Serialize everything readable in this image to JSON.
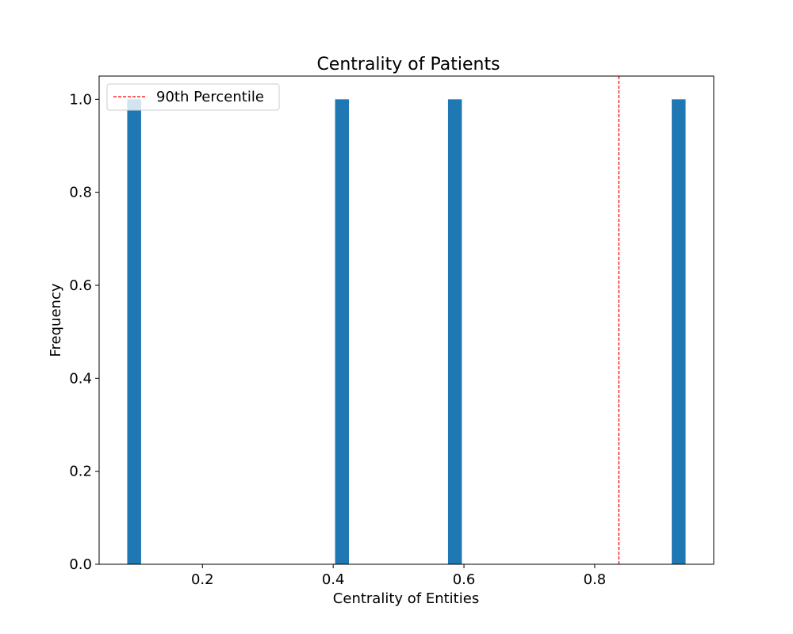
{
  "chart_data": {
    "type": "bar",
    "title": "Centrality of Patients",
    "xlabel": "Centrality of Entities",
    "ylabel": "Frequency",
    "xlim": [
      0.042,
      0.982
    ],
    "ylim": [
      0,
      1.05
    ],
    "x_ticks": [
      0.2,
      0.4,
      0.6,
      0.8
    ],
    "x_tick_labels": [
      "0.2",
      "0.4",
      "0.6",
      "0.8"
    ],
    "y_ticks": [
      0.0,
      0.2,
      0.4,
      0.6,
      0.8,
      1.0
    ],
    "y_tick_labels": [
      "0.0",
      "0.2",
      "0.4",
      "0.6",
      "0.8",
      "1.0"
    ],
    "bar_width": 0.0212,
    "bars": [
      {
        "x_start": 0.085,
        "x_end": 0.1062,
        "value": 1
      },
      {
        "x_start": 0.4029,
        "x_end": 0.4241,
        "value": 1
      },
      {
        "x_start": 0.5756,
        "x_end": 0.5968,
        "value": 1
      },
      {
        "x_start": 0.9178,
        "x_end": 0.939,
        "value": 1
      }
    ],
    "bar_color": "#1f77b4",
    "reference_lines": [
      {
        "name": "90th Percentile",
        "x": 0.837,
        "color": "#ff0000",
        "style": "dashed"
      }
    ],
    "legend": {
      "position": "upper-left",
      "entries": [
        "90th Percentile"
      ]
    },
    "grid": false
  }
}
